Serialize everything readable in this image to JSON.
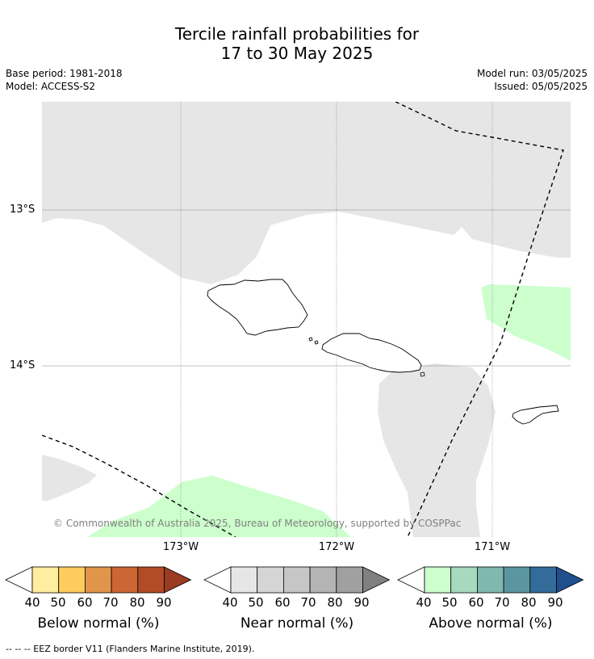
{
  "title": {
    "line1": "Tercile rainfall probabilities for",
    "line2": "17 to 30 May 2025"
  },
  "meta": {
    "base_period": "Base period: 1981-2018",
    "model": "Model: ACCESS-S2",
    "model_run": "Model run: 03/05/2025",
    "issued": "Issued: 05/05/2025"
  },
  "map": {
    "lat_labels": [
      "13°S",
      "14°S"
    ],
    "lon_labels": [
      "173°W",
      "172°W",
      "171°W"
    ],
    "copyright": "© Commonwealth of Australia 2025, Bureau of Meteorology, supported by COSPPac",
    "colors": {
      "near_normal_fill": "#e6e6e6",
      "above_normal_40_50": "#ccffcc",
      "above_normal_60_70": "#5b96a0"
    }
  },
  "colorbars": [
    {
      "title": "Below normal (%)",
      "ticks": [
        "40",
        "50",
        "60",
        "70",
        "80",
        "90"
      ],
      "colors": [
        "#ffeda0",
        "#fecc5c",
        "#e0954a",
        "#cc6633",
        "#b14b28",
        "#9a3b22"
      ]
    },
    {
      "title": "Near normal (%)",
      "ticks": [
        "40",
        "50",
        "60",
        "70",
        "80",
        "90"
      ],
      "colors": [
        "#e6e6e6",
        "#d5d5d5",
        "#c6c6c6",
        "#b4b4b4",
        "#a0a0a0",
        "#808080"
      ]
    },
    {
      "title": "Above normal (%)",
      "ticks": [
        "40",
        "50",
        "60",
        "70",
        "80",
        "90"
      ],
      "colors": [
        "#ccffcc",
        "#a6d9bd",
        "#80b8b0",
        "#5b96a0",
        "#336b99",
        "#1f4f8c"
      ]
    }
  ],
  "legend": {
    "eez": "--  --  -- EEZ border V11 (Flanders Marine Institute, 2019)."
  }
}
